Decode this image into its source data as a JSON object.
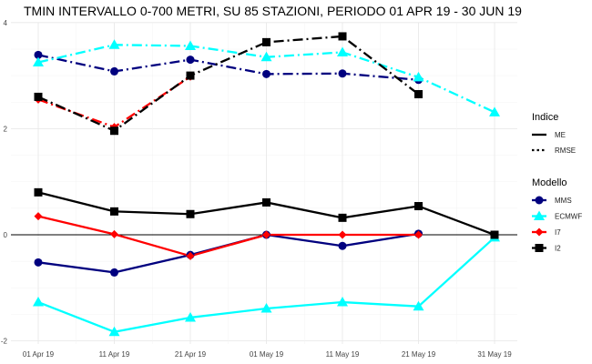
{
  "chart_data": {
    "type": "line",
    "title": "TMIN INTERVALLO 0-700 METRI, SU 85 STAZIONI, PERIODO 01 APR 19  -  30 JUN 19",
    "xlabel": "",
    "ylabel": "",
    "categories": [
      "01 Apr 19",
      "11 Apr 19",
      "21 Apr 19",
      "01 May 19",
      "11 May 19",
      "21 May 19",
      "31 May 19"
    ],
    "ylim": [
      -2.0,
      4.0
    ],
    "yticks": [
      -2,
      0,
      2,
      4
    ],
    "grid": true,
    "zero_line": true,
    "legend_placement": "right",
    "legend_linetype": {
      "title": "Indice",
      "entries": [
        {
          "label": "ME",
          "style": "solid"
        },
        {
          "label": "RMSE",
          "style": "dotted"
        }
      ]
    },
    "legend_model": {
      "title": "Modello",
      "entries": [
        {
          "label": "MMS",
          "color": "#00007f",
          "marker": "circle"
        },
        {
          "label": "ECMWF",
          "color": "#00ffff",
          "marker": "triangle"
        },
        {
          "label": "I7",
          "color": "#ff0000",
          "marker": "diamond"
        },
        {
          "label": "I2",
          "color": "#000000",
          "marker": "square"
        }
      ]
    },
    "series": [
      {
        "model": "MMS",
        "indice": "ME",
        "color": "#00007f",
        "marker": "circle",
        "values": [
          -0.52,
          -0.71,
          -0.38,
          0.0,
          -0.21,
          0.02,
          null
        ]
      },
      {
        "model": "ECMWF",
        "indice": "ME",
        "color": "#00ffff",
        "marker": "triangle",
        "values": [
          -1.27,
          -1.83,
          -1.56,
          -1.39,
          -1.27,
          -1.35,
          -0.05
        ]
      },
      {
        "model": "I7",
        "indice": "ME",
        "color": "#ff0000",
        "marker": "diamond",
        "values": [
          0.35,
          0.01,
          -0.4,
          0.0,
          0.0,
          0.0,
          null
        ]
      },
      {
        "model": "I2",
        "indice": "ME",
        "color": "#000000",
        "marker": "square",
        "values": [
          0.8,
          0.44,
          0.39,
          0.61,
          0.32,
          0.54,
          0.0
        ]
      },
      {
        "model": "MMS",
        "indice": "RMSE",
        "color": "#00007f",
        "marker": "circle",
        "values": [
          3.39,
          3.08,
          3.3,
          3.03,
          3.04,
          2.92,
          null
        ]
      },
      {
        "model": "ECMWF",
        "indice": "RMSE",
        "color": "#00ffff",
        "marker": "triangle",
        "values": [
          3.25,
          3.58,
          3.56,
          3.35,
          3.44,
          2.97,
          2.31
        ]
      },
      {
        "model": "I7",
        "indice": "RMSE",
        "color": "#ff0000",
        "marker": "diamond",
        "values": [
          2.55,
          2.03,
          2.98,
          null,
          null,
          null,
          null
        ]
      },
      {
        "model": "I2",
        "indice": "RMSE",
        "color": "#000000",
        "marker": "square",
        "values": [
          2.6,
          1.96,
          3.0,
          3.63,
          3.74,
          2.65,
          null
        ]
      }
    ]
  }
}
